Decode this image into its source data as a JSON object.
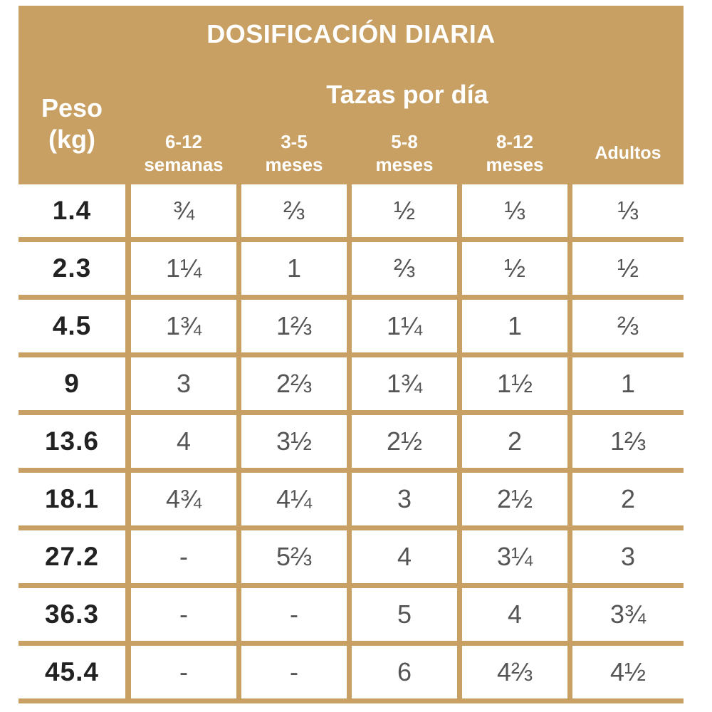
{
  "table": {
    "title": "DOSIFICACIÓN DIARIA",
    "weight_header_line1": "Peso",
    "weight_header_line2": "(kg)",
    "cups_header": "Tazas por día",
    "columns": [
      {
        "line1": "6-12",
        "line2": "semanas"
      },
      {
        "line1": "3-5",
        "line2": "meses"
      },
      {
        "line1": "5-8",
        "line2": "meses"
      },
      {
        "line1": "8-12",
        "line2": "meses"
      },
      {
        "line1": "Adultos",
        "line2": ""
      }
    ],
    "rows": [
      {
        "weight": "1.4",
        "cups": [
          "¾",
          "⅔",
          "½",
          "⅓",
          "⅓"
        ]
      },
      {
        "weight": "2.3",
        "cups": [
          "1¼",
          "1",
          "⅔",
          "½",
          "½"
        ]
      },
      {
        "weight": "4.5",
        "cups": [
          "1¾",
          "1⅔",
          "1¼",
          "1",
          "⅔"
        ]
      },
      {
        "weight": "9",
        "cups": [
          "3",
          "2⅔",
          "1¾",
          "1½",
          "1"
        ]
      },
      {
        "weight": "13.6",
        "cups": [
          "4",
          "3½",
          "2½",
          "2",
          "1⅔"
        ]
      },
      {
        "weight": "18.1",
        "cups": [
          "4¾",
          "4¼",
          "3",
          "2½",
          "2"
        ]
      },
      {
        "weight": "27.2",
        "cups": [
          "-",
          "5⅔",
          "4",
          "3¼",
          "3"
        ]
      },
      {
        "weight": "36.3",
        "cups": [
          "-",
          "-",
          "5",
          "4",
          "3¾"
        ]
      },
      {
        "weight": "45.4",
        "cups": [
          "-",
          "-",
          "6",
          "4⅔",
          "4½"
        ]
      }
    ]
  }
}
